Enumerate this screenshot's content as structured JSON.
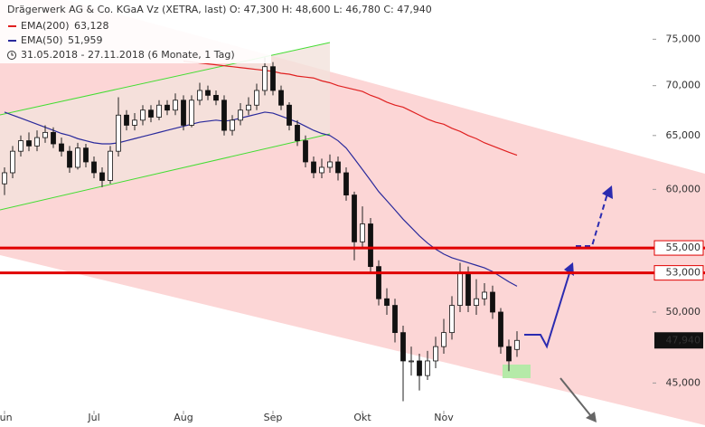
{
  "chart_data": {
    "type": "candlestick",
    "title": "Drägerwerk AG & Co. KGaA Vz (XETRA, last)  O: 47,300  H: 48,600  L: 46,780  C: 47,940",
    "date_range": "31.05.2018 - 27.11.2018 (6 Monate, 1 Tag)",
    "log_scale": true,
    "ylim": [
      43300,
      79500
    ],
    "yticks": [
      {
        "value": 45000,
        "label": "45,000"
      },
      {
        "value": 50000,
        "label": "50,000"
      },
      {
        "value": 60000,
        "label": "60,000"
      },
      {
        "value": 65000,
        "label": "65,000"
      },
      {
        "value": 70000,
        "label": "70,000"
      },
      {
        "value": 75000,
        "label": "75,000"
      }
    ],
    "categories": [
      "Jun",
      null,
      null,
      null,
      null,
      null,
      null,
      null,
      null,
      null,
      null,
      "Jul",
      null,
      null,
      null,
      null,
      null,
      null,
      null,
      null,
      null,
      null,
      "Aug",
      null,
      null,
      null,
      null,
      null,
      null,
      null,
      null,
      null,
      null,
      "Sep",
      null,
      null,
      null,
      null,
      null,
      null,
      null,
      null,
      null,
      null,
      "Okt",
      null,
      null,
      null,
      null,
      null,
      null,
      null,
      null,
      null,
      "Nov",
      null,
      null,
      null,
      null,
      null,
      null,
      null,
      null,
      null
    ],
    "open": [
      60500,
      61500,
      63500,
      64500,
      64000,
      64800,
      65300,
      64200,
      63500,
      62000,
      63800,
      62500,
      61500,
      60800,
      63500,
      67000,
      66000,
      66500,
      67500,
      66800,
      68000,
      67500,
      68500,
      66000,
      68500,
      69500,
      69000,
      68500,
      65500,
      66500,
      67500,
      68000,
      69500,
      72000,
      69500,
      68000,
      66000,
      64500,
      62500,
      61500,
      62000,
      62500,
      61500,
      59500,
      55500,
      57000,
      53500,
      51000,
      50500,
      48500,
      46500,
      46500,
      45500,
      46500,
      47500,
      48500,
      50500,
      53000,
      50500,
      51000,
      51500,
      50000,
      47500,
      47300
    ],
    "high": [
      62000,
      64000,
      65000,
      65300,
      65500,
      66000,
      65800,
      64800,
      64000,
      64300,
      64200,
      63000,
      62000,
      64000,
      68800,
      67500,
      67200,
      68000,
      68000,
      68500,
      68500,
      69200,
      69000,
      69000,
      70300,
      70000,
      69500,
      69000,
      67000,
      68200,
      68800,
      70200,
      73000,
      72500,
      70000,
      68300,
      66500,
      65000,
      63000,
      62800,
      63200,
      63000,
      62000,
      59800,
      58500,
      57500,
      54000,
      51800,
      51000,
      49000,
      47500,
      47000,
      47200,
      48200,
      49500,
      51200,
      53800,
      53500,
      52500,
      52200,
      52000,
      50300,
      48000,
      48600
    ],
    "low": [
      59500,
      61000,
      63000,
      63500,
      63500,
      64300,
      63800,
      63000,
      61500,
      61800,
      62000,
      61000,
      60200,
      60500,
      63000,
      65500,
      65500,
      66000,
      66300,
      66500,
      67000,
      67000,
      65500,
      65800,
      68000,
      68500,
      68000,
      65000,
      65000,
      66000,
      67000,
      67500,
      69000,
      69000,
      67500,
      65500,
      64000,
      62000,
      61000,
      61000,
      61500,
      60800,
      59000,
      54000,
      55000,
      53000,
      50500,
      49800,
      47800,
      43800,
      45500,
      44500,
      45200,
      46000,
      47000,
      48000,
      50000,
      50000,
      49800,
      50500,
      49500,
      47000,
      45800,
      46780
    ],
    "close": [
      61500,
      63500,
      64500,
      64000,
      64800,
      65300,
      64200,
      63500,
      62000,
      63800,
      62500,
      61500,
      60800,
      63500,
      67000,
      66000,
      66500,
      67500,
      66800,
      68000,
      67500,
      68500,
      66000,
      68500,
      69500,
      69000,
      68500,
      65500,
      66500,
      67500,
      68000,
      69500,
      72000,
      69500,
      68000,
      66000,
      64500,
      62500,
      61500,
      62000,
      62500,
      61500,
      59500,
      55500,
      57000,
      53500,
      51000,
      50500,
      48500,
      46500,
      46500,
      45500,
      46500,
      47500,
      48500,
      50500,
      53000,
      50500,
      51000,
      51500,
      50000,
      47500,
      46500,
      47940
    ],
    "overlays": [
      {
        "name": "EMA(200)",
        "color": "#e02020",
        "legend_value": "63,128",
        "values": [
          null,
          null,
          null,
          null,
          null,
          null,
          null,
          null,
          null,
          null,
          null,
          null,
          null,
          null,
          null,
          null,
          null,
          null,
          null,
          null,
          null,
          null,
          72600,
          72500,
          72400,
          72300,
          72200,
          72100,
          72000,
          71900,
          71800,
          71700,
          71600,
          71500,
          71300,
          71200,
          71000,
          70900,
          70800,
          70500,
          70300,
          70000,
          69800,
          69600,
          69400,
          69000,
          68700,
          68300,
          68000,
          67800,
          67400,
          67000,
          66600,
          66300,
          66100,
          65700,
          65400,
          65000,
          64700,
          64300,
          64000,
          63700,
          63400,
          63128
        ]
      },
      {
        "name": "EMA(50)",
        "color": "#2a2a9c",
        "legend_value": "51,959",
        "values": [
          67300,
          67000,
          66700,
          66400,
          66100,
          65800,
          65500,
          65200,
          65000,
          64700,
          64500,
          64300,
          64200,
          64200,
          64300,
          64500,
          64700,
          64900,
          65100,
          65300,
          65500,
          65700,
          65900,
          66100,
          66300,
          66400,
          66500,
          66400,
          66500,
          66700,
          66900,
          67100,
          67300,
          67200,
          66900,
          66600,
          66300,
          65900,
          65500,
          65200,
          65000,
          64500,
          63800,
          62800,
          61800,
          60800,
          59800,
          59000,
          58200,
          57400,
          56700,
          56000,
          55400,
          54900,
          54500,
          54200,
          54000,
          53800,
          53600,
          53400,
          53100,
          52700,
          52300,
          51959
        ]
      }
    ],
    "levels": [
      {
        "value": 55000,
        "label": "55,000",
        "color": "#e00000"
      },
      {
        "value": 53000,
        "label": "53,000",
        "color": "#e00000"
      }
    ],
    "last_price": {
      "value": 47940,
      "label": "47,940"
    }
  }
}
